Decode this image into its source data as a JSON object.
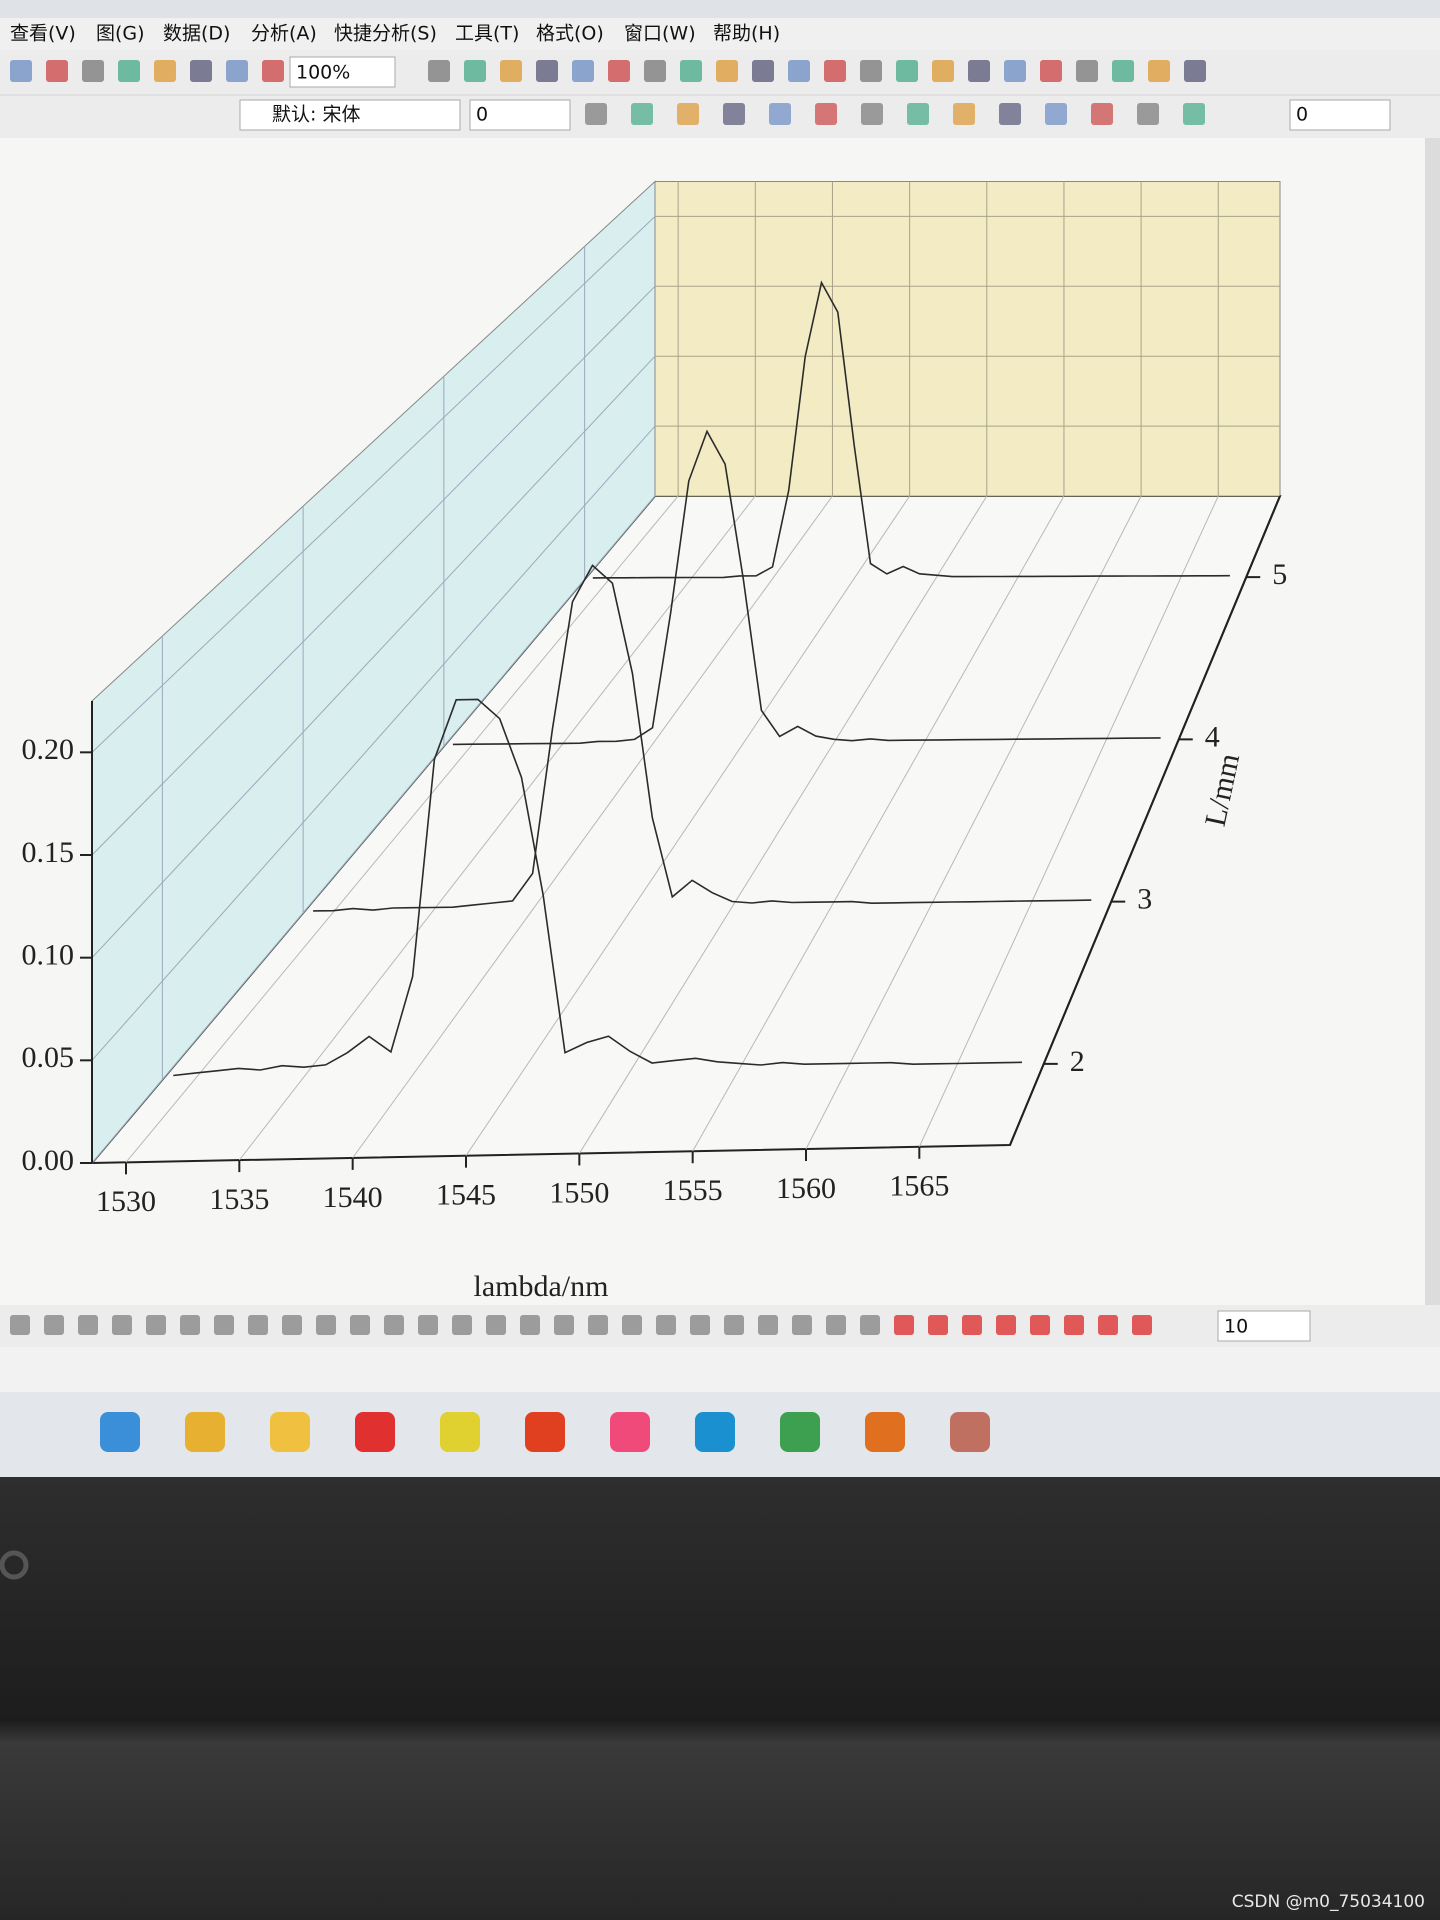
{
  "menu": [
    "查看(V)",
    "图(G)",
    "数据(D)",
    "分析(A)",
    "快捷分析(S)",
    "工具(T)",
    "格式(O)",
    "窗口(W)",
    "帮助(H)"
  ],
  "toolbar": {
    "zoom": "100%",
    "font": "默认: 宋体",
    "font_size": 0,
    "line_width": 0
  },
  "bottom_toolbar": {
    "value": 10
  },
  "chart_data": {
    "type": "waterfall",
    "x_label": "lambda/nm",
    "z_label": "L/mm",
    "x": [
      1529,
      1530,
      1531,
      1532,
      1533,
      1534,
      1535,
      1536,
      1537,
      1538,
      1539,
      1540,
      1541,
      1542,
      1543,
      1544,
      1545,
      1546,
      1547,
      1548,
      1549,
      1550,
      1551,
      1552,
      1553,
      1554,
      1555,
      1556,
      1557,
      1558,
      1559,
      1560,
      1561,
      1562,
      1563,
      1564,
      1565,
      1566,
      1567,
      1568
    ],
    "series": [
      {
        "z": 2,
        "values": [
          0.002,
          0.003,
          0.004,
          0.005,
          0.004,
          0.006,
          0.005,
          0.006,
          0.012,
          0.02,
          0.012,
          0.05,
          0.16,
          0.19,
          0.19,
          0.18,
          0.15,
          0.09,
          0.01,
          0.015,
          0.018,
          0.01,
          0.004,
          0.005,
          0.006,
          0.004,
          0.003,
          0.002,
          0.003,
          0.002,
          0.002,
          0.002,
          0.002,
          0.002,
          0.001,
          0.001,
          0.001,
          0.001,
          0.001,
          0.001
        ]
      },
      {
        "z": 3,
        "values": [
          0.001,
          0.001,
          0.002,
          0.001,
          0.002,
          0.002,
          0.002,
          0.002,
          0.003,
          0.004,
          0.005,
          0.02,
          0.1,
          0.17,
          0.19,
          0.18,
          0.13,
          0.05,
          0.006,
          0.015,
          0.008,
          0.003,
          0.002,
          0.003,
          0.002,
          0.002,
          0.002,
          0.002,
          0.001,
          0.001,
          0.001,
          0.001,
          0.001,
          0.001,
          0.001,
          0.001,
          0.001,
          0.001,
          0.001,
          0.001
        ]
      },
      {
        "z": 4,
        "values": [
          0.001,
          0.001,
          0.001,
          0.001,
          0.001,
          0.001,
          0.001,
          0.001,
          0.002,
          0.002,
          0.003,
          0.01,
          0.08,
          0.16,
          0.19,
          0.17,
          0.1,
          0.02,
          0.004,
          0.01,
          0.004,
          0.002,
          0.001,
          0.002,
          0.001,
          0.001,
          0.001,
          0.001,
          0.001,
          0.001,
          0.001,
          0.001,
          0.001,
          0.001,
          0.001,
          0.001,
          0.001,
          0.001,
          0.001,
          0.001
        ]
      },
      {
        "z": 5,
        "values": [
          0.001,
          0.001,
          0.001,
          0.001,
          0.001,
          0.001,
          0.001,
          0.001,
          0.001,
          0.002,
          0.002,
          0.008,
          0.06,
          0.15,
          0.2,
          0.18,
          0.09,
          0.01,
          0.003,
          0.008,
          0.003,
          0.002,
          0.001,
          0.001,
          0.001,
          0.001,
          0.001,
          0.001,
          0.001,
          0.001,
          0.001,
          0.001,
          0.001,
          0.001,
          0.001,
          0.001,
          0.001,
          0.001,
          0.001,
          0.001
        ]
      }
    ],
    "line_color": "#2b2b2b",
    "left_wall_color": "#d9eeee",
    "back_wall_color": "#f2ebc4",
    "grid": true,
    "xlim": [
      1528.5,
      1569
    ],
    "xticks": [
      1530,
      1535,
      1540,
      1545,
      1550,
      1555,
      1560,
      1565
    ],
    "ylim": [
      0,
      0.225
    ],
    "yticks": [
      {
        "value": 0,
        "label": "0.00"
      },
      0.05,
      {
        "value": 0.1,
        "label": "0.10"
      },
      0.15,
      {
        "value": 0.2,
        "label": "0.20"
      }
    ],
    "zlim": [
      1.5,
      5.5
    ],
    "zticks": [
      2,
      3,
      4,
      5
    ]
  },
  "watermark": "CSDN @m0_75034100"
}
